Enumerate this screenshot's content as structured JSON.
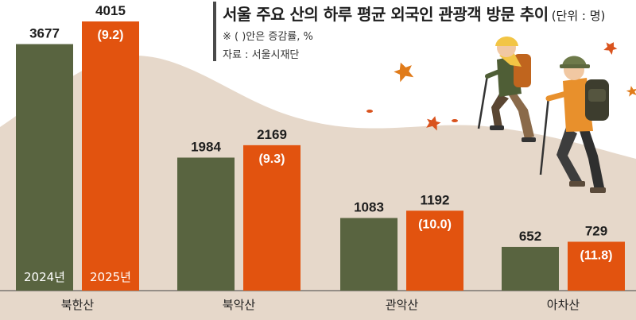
{
  "header": {
    "title": "서울 주요 산의 하루 평균 외국인 관광객 방문 추이",
    "unit": "(단위 : 명)",
    "note": "※ (  )안은 증감률, %",
    "source": "자료 : 서울시재단"
  },
  "colors": {
    "series_2024": "#596440",
    "series_2025": "#e2530f",
    "mountain": "#e6d8ca",
    "text": "#1e1e1e",
    "axis": "#444444"
  },
  "chart_data": {
    "type": "bar",
    "categories": [
      "북한산",
      "북악산",
      "관악산",
      "아차산"
    ],
    "series": [
      {
        "name": "2024년",
        "values": [
          3677,
          1984,
          1083,
          652
        ]
      },
      {
        "name": "2025년",
        "values": [
          4015,
          2169,
          1192,
          729
        ]
      }
    ],
    "change_pct": [
      "(9.2)",
      "(9.3)",
      "(10.0)",
      "(11.8)"
    ],
    "title": "서울 주요 산의 하루 평균 외국인 관광객 방문 추이",
    "xlabel": "",
    "ylabel": "",
    "ylim": [
      0,
      4250
    ],
    "grid": false,
    "legend": "in-bar labels"
  }
}
